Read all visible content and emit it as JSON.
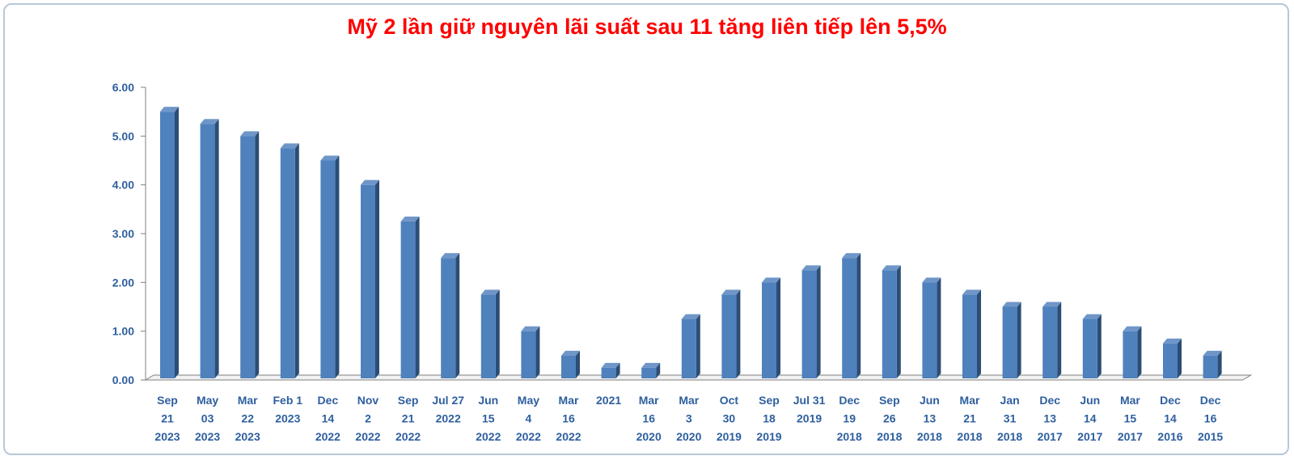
{
  "colors": {
    "title": "#ff0000",
    "bar_front": "#4f81bd",
    "bar_side": "#2c4d75",
    "bar_top": "#6f96c8",
    "axis_text": "#2e5f9f",
    "axis_line": "#7f7f7f"
  },
  "chart_data": {
    "type": "bar",
    "title": "Mỹ 2 lần giữ nguyên lãi suất sau 11 tăng liên tiếp lên 5,5%",
    "xlabel": "",
    "ylabel": "",
    "ylim": [
      0,
      6
    ],
    "yticks": [
      "0.00",
      "1.00",
      "2.00",
      "3.00",
      "4.00",
      "5.00",
      "6.00"
    ],
    "grid": false,
    "categories": [
      [
        "Sep",
        "21",
        "2023"
      ],
      [
        "May",
        "03",
        "2023"
      ],
      [
        "Mar",
        "22",
        "2023"
      ],
      [
        "Feb 1",
        "2023"
      ],
      [
        "Dec",
        "14",
        "2022"
      ],
      [
        "Nov",
        "2",
        "2022"
      ],
      [
        "Sep",
        "21",
        "2022"
      ],
      [
        "Jul 27",
        "2022"
      ],
      [
        "Jun",
        "15",
        "2022"
      ],
      [
        "May",
        "4",
        "2022"
      ],
      [
        "Mar",
        "16",
        "2022"
      ],
      [
        "2021"
      ],
      [
        "Mar",
        "16",
        "2020"
      ],
      [
        "Mar",
        "3",
        "2020"
      ],
      [
        "Oct",
        "30",
        "2019"
      ],
      [
        "Sep",
        "18",
        "2019"
      ],
      [
        "Jul 31",
        "2019"
      ],
      [
        "Dec",
        "19",
        "2018"
      ],
      [
        "Sep",
        "26",
        "2018"
      ],
      [
        "Jun",
        "13",
        "2018"
      ],
      [
        "Mar",
        "21",
        "2018"
      ],
      [
        "Jan",
        "31",
        "2018"
      ],
      [
        "Dec",
        "13",
        "2017"
      ],
      [
        "Jun",
        "14",
        "2017"
      ],
      [
        "Mar",
        "15",
        "2017"
      ],
      [
        "Dec",
        "14",
        "2016"
      ],
      [
        "Dec",
        "16",
        "2015"
      ]
    ],
    "values": [
      5.5,
      5.25,
      5.0,
      4.75,
      4.5,
      4.0,
      3.25,
      2.5,
      1.75,
      1.0,
      0.5,
      0.25,
      0.25,
      1.25,
      1.75,
      2.0,
      2.25,
      2.5,
      2.25,
      2.0,
      1.75,
      1.5,
      1.5,
      1.25,
      1.0,
      0.75,
      0.5
    ]
  }
}
